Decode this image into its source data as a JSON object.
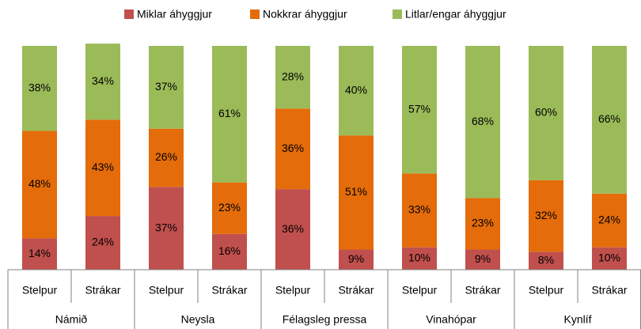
{
  "chart_data": {
    "type": "stacked_bar",
    "categories": [
      "Stelpur",
      "Strákar",
      "Stelpur",
      "Strákar",
      "Stelpur",
      "Strákar",
      "Stelpur",
      "Strákar",
      "Stelpur",
      "Strákar"
    ],
    "groups": [
      "Námið",
      "Neysla",
      "Félagsleg pressa",
      "Vinahópar",
      "Kynlíf"
    ],
    "series": [
      {
        "name": "Miklar áhyggjur",
        "color": "#c0504d",
        "values": [
          14,
          24,
          37,
          16,
          36,
          9,
          10,
          9,
          8,
          10
        ],
        "value_labels": [
          "14%",
          "24%",
          "37%",
          "16%",
          "36%",
          "9%",
          "10%",
          "9%",
          "8%",
          "10%"
        ]
      },
      {
        "name": "Nokkrar áhyggjur",
        "color": "#e46c0a",
        "values": [
          48,
          43,
          26,
          23,
          36,
          51,
          33,
          23,
          32,
          24
        ],
        "value_labels": [
          "48%",
          "43%",
          "26%",
          "23%",
          "36%",
          "51%",
          "33%",
          "23%",
          "32%",
          "24%"
        ]
      },
      {
        "name": "Litlar/engar áhyggjur",
        "color": "#9bbb59",
        "values": [
          38,
          34,
          37,
          61,
          28,
          40,
          57,
          68,
          60,
          66
        ],
        "value_labels": [
          "38%",
          "34%",
          "37%",
          "61%",
          "28%",
          "40%",
          "57%",
          "68%",
          "60%",
          "66%"
        ]
      }
    ]
  }
}
